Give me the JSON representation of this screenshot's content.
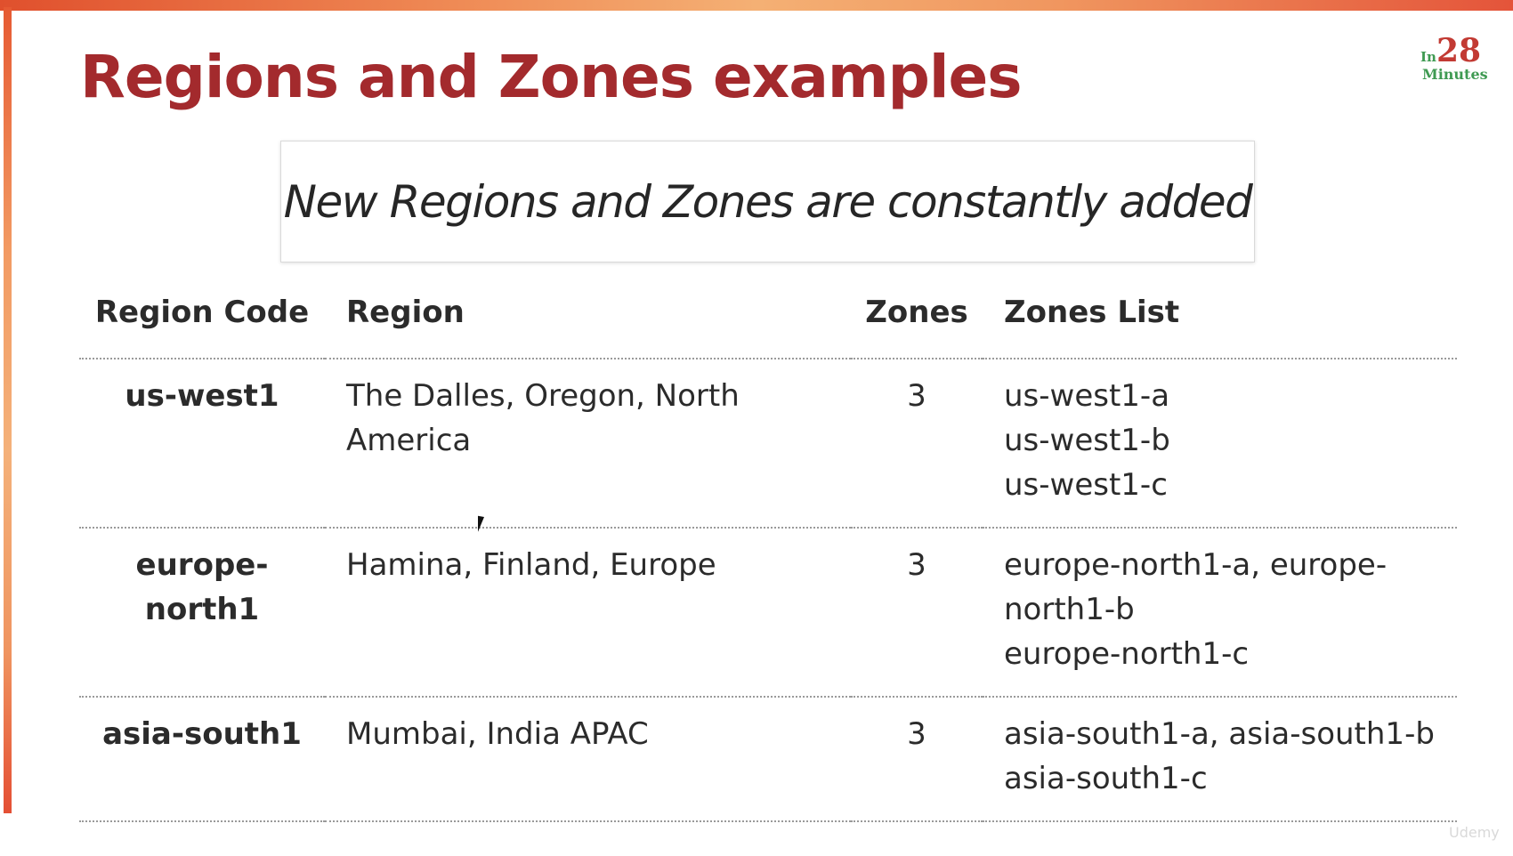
{
  "slide": {
    "title": "Regions and Zones examples",
    "callout": "New Regions and Zones are constantly added"
  },
  "logo": {
    "prefix": "In",
    "number": "28",
    "word": "Minutes"
  },
  "table": {
    "headers": [
      "Region Code",
      "Region",
      "Zones",
      "Zones List"
    ],
    "rows": [
      {
        "code": "us-west1",
        "region": "The Dalles, Oregon, North America",
        "zones": "3",
        "zones_list": [
          "us-west1-a",
          "us-west1-b",
          "us-west1-c"
        ]
      },
      {
        "code": "europe-north1",
        "region": "Hamina, Finland, Europe",
        "zones": "3",
        "zones_list": [
          "europe-north1-a, europe-north1-b",
          "europe-north1-c"
        ]
      },
      {
        "code": "asia-south1",
        "region": "Mumbai, India APAC",
        "zones": "3",
        "zones_list": [
          "asia-south1-a, asia-south1-b",
          "asia-south1-c"
        ]
      }
    ]
  },
  "watermark": "Udemy",
  "colors": {
    "title": "#a32a2d",
    "accent_bar": "#e0502d",
    "logo_red": "#c23a33",
    "logo_green": "#3f9a52"
  }
}
